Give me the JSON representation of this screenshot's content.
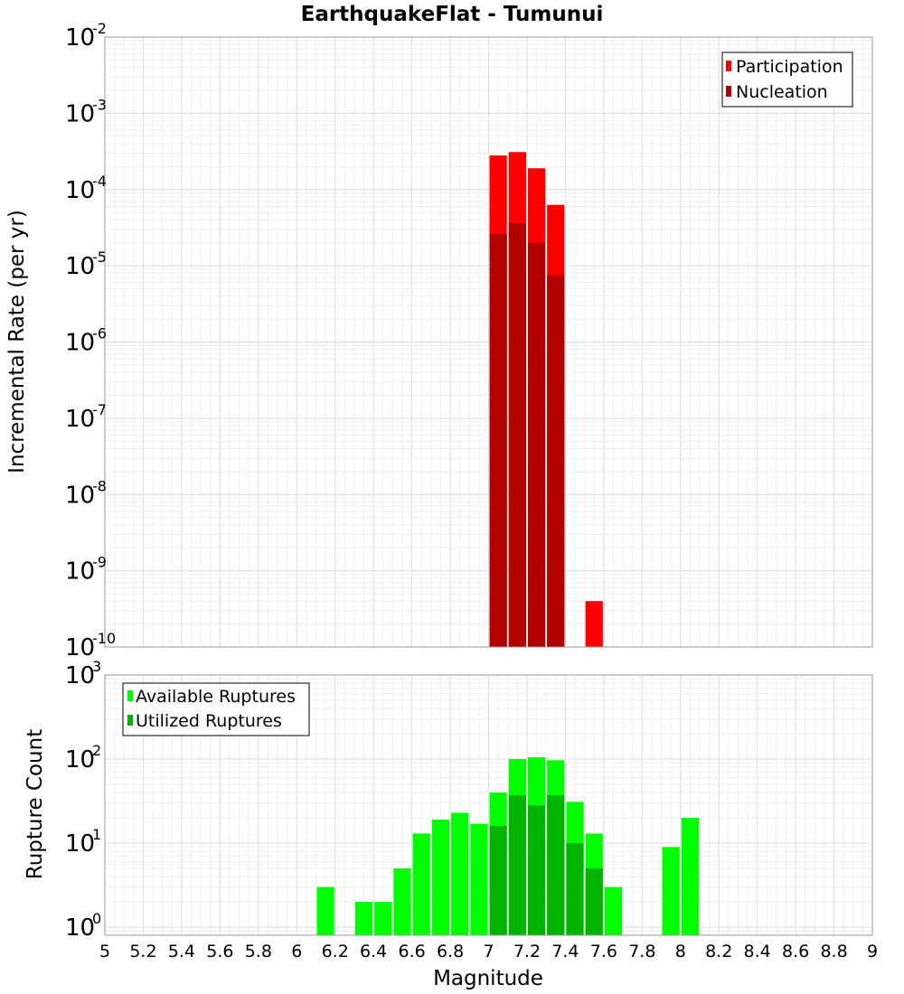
{
  "chart_data": [
    {
      "type": "bar",
      "title": "EarthquakeFlat - Tumunui",
      "xlabel": "",
      "ylabel": "Incremental Rate (per yr)",
      "xlim": [
        5,
        9
      ],
      "ylim": [
        1e-10,
        0.01
      ],
      "yscale": "log",
      "grid": true,
      "legend_placement": "top-right",
      "bin_width": 0.1,
      "y_ticks": [
        {
          "base": "10",
          "exp": "-2",
          "value": 0.01
        },
        {
          "base": "10",
          "exp": "-3",
          "value": 0.001
        },
        {
          "base": "10",
          "exp": "-4",
          "value": 0.0001
        },
        {
          "base": "10",
          "exp": "-5",
          "value": 1e-05
        },
        {
          "base": "10",
          "exp": "-6",
          "value": 1e-06
        },
        {
          "base": "10",
          "exp": "-7",
          "value": 1e-07
        },
        {
          "base": "10",
          "exp": "-8",
          "value": 1e-08
        },
        {
          "base": "10",
          "exp": "-9",
          "value": 1e-09
        },
        {
          "base": "10",
          "exp": "-10",
          "value": 1e-10
        }
      ],
      "series": [
        {
          "name": "Participation",
          "color": "#ff0000",
          "x": [
            7.05,
            7.15,
            7.25,
            7.35,
            7.55
          ],
          "values": [
            0.00028,
            0.00031,
            0.00019,
            6.3e-05,
            4e-10
          ]
        },
        {
          "name": "Nucleation",
          "color": "#b30000",
          "x": [
            7.05,
            7.15,
            7.25,
            7.35
          ],
          "values": [
            2.6e-05,
            3.6e-05,
            2e-05,
            7.5e-06
          ]
        }
      ]
    },
    {
      "type": "bar",
      "title": "",
      "xlabel": "Magnitude",
      "ylabel": "Rupture Count",
      "xlim": [
        5,
        9
      ],
      "ylim": [
        0.8,
        1000
      ],
      "yscale": "log",
      "grid": true,
      "legend_placement": "top-left",
      "bin_width": 0.1,
      "x_ticks": [
        "5",
        "5.2",
        "5.4",
        "5.6",
        "5.8",
        "6",
        "6.2",
        "6.4",
        "6.6",
        "6.8",
        "7",
        "7.2",
        "7.4",
        "7.6",
        "7.8",
        "8",
        "8.2",
        "8.4",
        "8.6",
        "8.8",
        "9"
      ],
      "y_ticks": [
        {
          "base": "10",
          "exp": "3",
          "value": 1000
        },
        {
          "base": "10",
          "exp": "2",
          "value": 100
        },
        {
          "base": "10",
          "exp": "1",
          "value": 10
        },
        {
          "base": "10",
          "exp": "0",
          "value": 1
        }
      ],
      "series": [
        {
          "name": "Available Ruptures",
          "color": "#00ff00",
          "x": [
            6.15,
            6.35,
            6.45,
            6.55,
            6.65,
            6.75,
            6.85,
            6.95,
            7.05,
            7.15,
            7.25,
            7.35,
            7.45,
            7.55,
            7.65,
            7.95,
            8.05
          ],
          "values": [
            3,
            2,
            2,
            5,
            13,
            19,
            23,
            17,
            40,
            100,
            105,
            97,
            31,
            13,
            3,
            9,
            20
          ]
        },
        {
          "name": "Utilized Ruptures",
          "color": "#00b400",
          "x": [
            7.05,
            7.15,
            7.25,
            7.35,
            7.45,
            7.55
          ],
          "values": [
            16,
            37,
            28,
            37,
            10,
            5
          ]
        }
      ]
    }
  ]
}
